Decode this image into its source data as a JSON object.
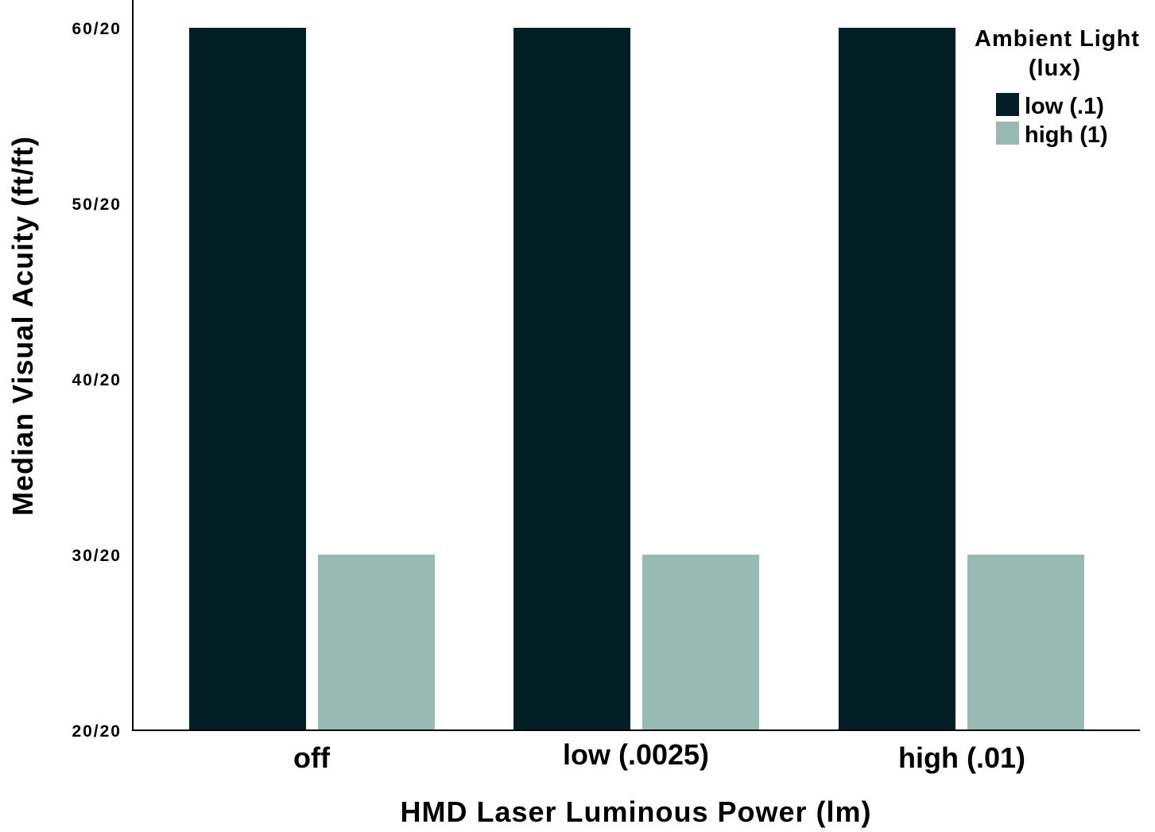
{
  "chart_data": {
    "type": "bar",
    "categories": [
      "off",
      "low (.0025)",
      "high (.01)"
    ],
    "series": [
      {
        "name": "low (.1)",
        "values": [
          60,
          60,
          60
        ],
        "color": "#021f26"
      },
      {
        "name": "high (1)",
        "values": [
          30,
          30,
          30
        ],
        "color": "#97bab3"
      }
    ],
    "title": "",
    "xlabel": "HMD Laser Luminous Power (lm)",
    "ylabel": "Median Visual Acuity (ft/ft)",
    "ylim": [
      20,
      60
    ],
    "yticks": [
      {
        "value": 20,
        "label": "20/20"
      },
      {
        "value": 30,
        "label": "30/20"
      },
      {
        "value": 40,
        "label": "40/20"
      },
      {
        "value": 50,
        "label": "50/20"
      },
      {
        "value": 60,
        "label": "60/20"
      }
    ],
    "legend": {
      "title_line1": "Ambient Light",
      "title_line2": "(lux)",
      "placement": "top-right"
    },
    "grid": false
  }
}
